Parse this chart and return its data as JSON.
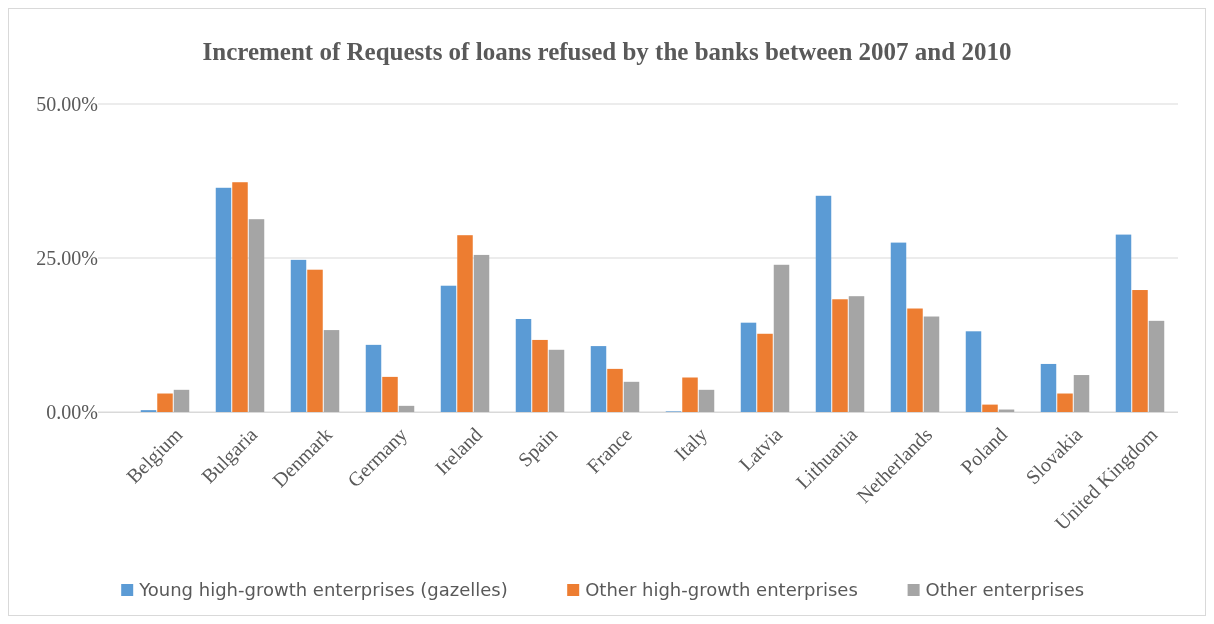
{
  "chart_data": {
    "type": "bar",
    "title": "Increment of Requests of loans refused by the banks between 2007 and 2010",
    "categories": [
      "Belgium",
      "Bulgaria",
      "Denmark",
      "Germany",
      "Ireland",
      "Spain",
      "France",
      "Italy",
      "Latvia",
      "Lithuania",
      "Netherlands",
      "Poland",
      "Slovakia",
      "United Kingdom"
    ],
    "series": [
      {
        "name": "Young high-growth enterprises (gazelles)",
        "color": "#5b9bd5",
        "values": [
          0.3,
          36.4,
          24.7,
          10.9,
          20.5,
          15.1,
          10.7,
          0.1,
          14.5,
          35.1,
          27.5,
          13.1,
          7.8,
          28.8
        ]
      },
      {
        "name": "Other high-growth enterprises",
        "color": "#ed7d31",
        "values": [
          3.0,
          37.3,
          23.1,
          5.7,
          28.7,
          11.7,
          7.0,
          5.6,
          12.7,
          18.3,
          16.8,
          1.2,
          3.0,
          19.8
        ]
      },
      {
        "name": "Other enterprises",
        "color": "#a5a5a5",
        "values": [
          3.6,
          31.3,
          13.3,
          1.0,
          25.5,
          10.1,
          4.9,
          3.6,
          23.9,
          18.8,
          15.5,
          0.4,
          6.0,
          14.8
        ]
      }
    ],
    "ylim": [
      0,
      50
    ],
    "yticks": [
      {
        "value": 0,
        "label": "0.00%"
      },
      {
        "value": 25,
        "label": "25.00%"
      },
      {
        "value": 50,
        "label": "50.00%"
      }
    ],
    "grid": "y",
    "legend": "bottom"
  }
}
